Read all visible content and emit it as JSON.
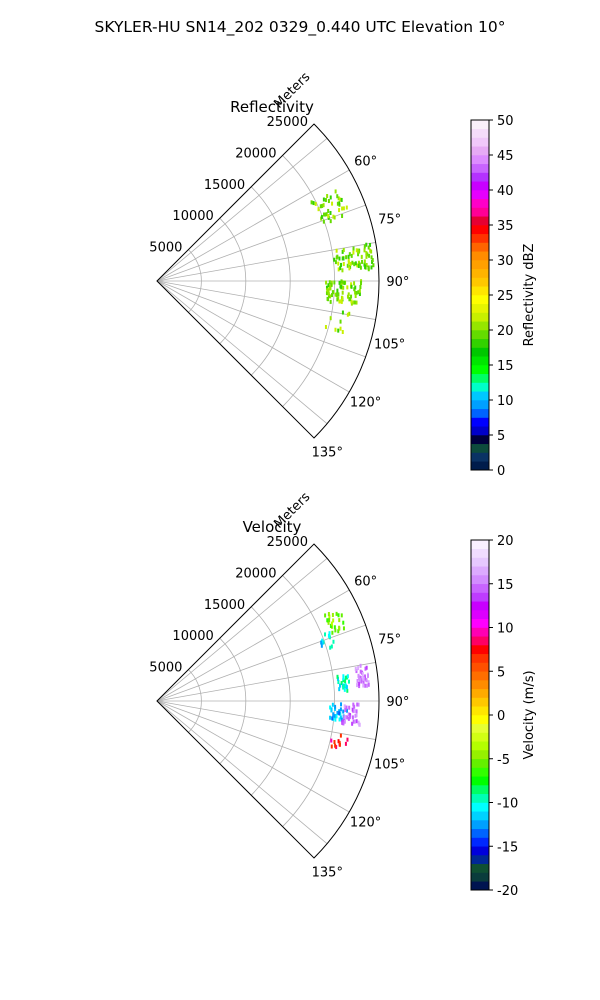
{
  "figure": {
    "suptitle": "SKYLER-HU  SN14_202  0329_0.440 UTC Elevation 10°"
  },
  "chart_data": [
    {
      "type": "polar-sector-scatter",
      "title": "Reflectivity",
      "radial_label": "Meters",
      "radial_ticks": [
        5000,
        10000,
        15000,
        20000,
        25000
      ],
      "radial_tick_labels": [
        "5000",
        "10000",
        "15000",
        "20000",
        "25000"
      ],
      "rlim": [
        0,
        25000
      ],
      "theta_range_deg": [
        45,
        135
      ],
      "theta_ticks_deg": [
        60,
        75,
        90,
        105,
        120,
        135
      ],
      "theta_tick_labels": [
        "60°",
        "75°",
        "90°",
        "105°",
        "120°",
        "135°"
      ],
      "theta_gridlines_deg": [
        45,
        50,
        60,
        70,
        80,
        90,
        100,
        110,
        120,
        130,
        135
      ],
      "grid": true,
      "colorbar": {
        "label": "Reflectivity dBZ",
        "range": [
          0,
          50
        ],
        "ticks": [
          0,
          5,
          10,
          15,
          20,
          25,
          30,
          35,
          40,
          45,
          50
        ],
        "tick_labels": [
          "0",
          "5",
          "10",
          "15",
          "20",
          "25",
          "30",
          "35",
          "40",
          "45",
          "50"
        ],
        "levels": 40,
        "colormap": "pyart_NWSRef"
      },
      "clusters": [
        {
          "theta_deg": [
            63,
            71
          ],
          "r_m": [
            19500,
            23000
          ],
          "value": 20,
          "count": 40
        },
        {
          "theta_deg": [
            80,
            87
          ],
          "r_m": [
            20000,
            24500
          ],
          "value": 20,
          "count": 70
        },
        {
          "theta_deg": [
            90,
            97
          ],
          "r_m": [
            19000,
            23000
          ],
          "value": 20,
          "count": 75
        },
        {
          "theta_deg": [
            99,
            106
          ],
          "r_m": [
            19500,
            22000
          ],
          "value": 20,
          "count": 10
        }
      ]
    },
    {
      "type": "polar-sector-scatter",
      "title": "Velocity",
      "radial_label": "Meters",
      "radial_ticks": [
        5000,
        10000,
        15000,
        20000,
        25000
      ],
      "radial_tick_labels": [
        "5000",
        "10000",
        "15000",
        "20000",
        "25000"
      ],
      "rlim": [
        0,
        25000
      ],
      "theta_range_deg": [
        45,
        135
      ],
      "theta_ticks_deg": [
        60,
        75,
        90,
        105,
        120,
        135
      ],
      "theta_tick_labels": [
        "60°",
        "75°",
        "90°",
        "105°",
        "120°",
        "135°"
      ],
      "theta_gridlines_deg": [
        45,
        50,
        60,
        70,
        80,
        90,
        100,
        110,
        120,
        130,
        135
      ],
      "grid": true,
      "colorbar": {
        "label": "Velocity (m/s)",
        "range": [
          -20,
          20
        ],
        "ticks": [
          -20,
          -15,
          -10,
          -5,
          0,
          5,
          10,
          15,
          20
        ],
        "tick_labels": [
          "-20",
          "-15",
          "-10",
          "-5",
          "0",
          "5",
          "10",
          "15",
          "20"
        ],
        "levels": 40,
        "colormap": "pyart_BuDRd18"
      },
      "clusters": [
        {
          "theta_deg": [
            63,
            69
          ],
          "r_m": [
            21000,
            23000
          ],
          "value": -5,
          "count": 25
        },
        {
          "theta_deg": [
            68,
            73
          ],
          "r_m": [
            19500,
            21000
          ],
          "value": -11,
          "count": 12
        },
        {
          "theta_deg": [
            82,
            87
          ],
          "r_m": [
            20500,
            22000
          ],
          "value": -10,
          "count": 25
        },
        {
          "theta_deg": [
            80,
            86
          ],
          "r_m": [
            22500,
            24000
          ],
          "value": 15,
          "count": 35
        },
        {
          "theta_deg": [
            91,
            96
          ],
          "r_m": [
            19500,
            21500
          ],
          "value": -12,
          "count": 30
        },
        {
          "theta_deg": [
            91,
            97
          ],
          "r_m": [
            21000,
            23000
          ],
          "value": 15,
          "count": 35
        },
        {
          "theta_deg": [
            100,
            107
          ],
          "r_m": [
            20000,
            22000
          ],
          "value": 8,
          "count": 12
        }
      ]
    }
  ]
}
